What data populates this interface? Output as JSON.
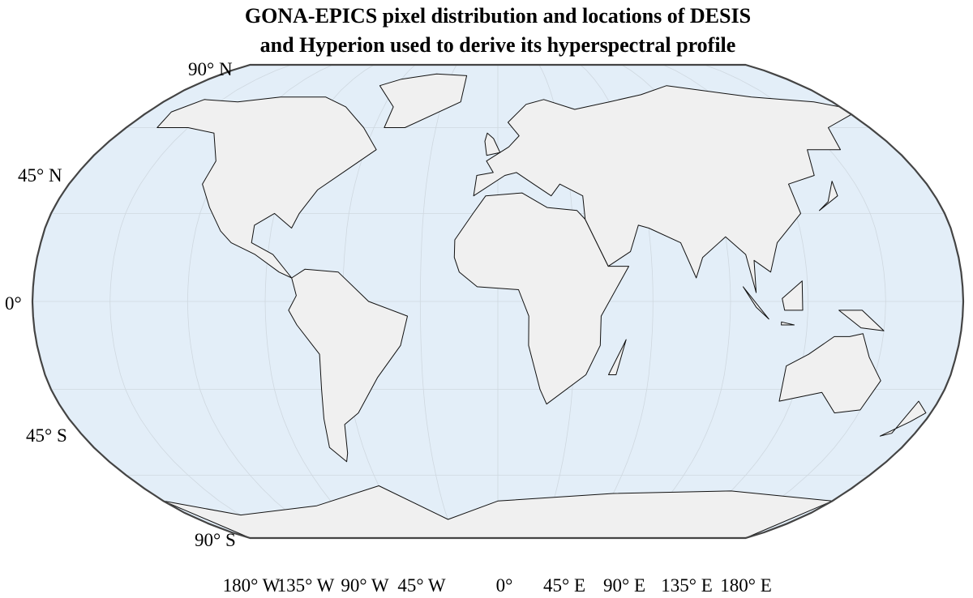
{
  "title": [
    "GONA-EPICS pixel distribution and locations of DESIS",
    "and Hyperion used to derive its hyperspectral profile"
  ],
  "latitude_labels": [
    "90° N",
    "45° N",
    "0°",
    "45° S",
    "90° S"
  ],
  "longitude_labels": [
    "180° W",
    "135° W",
    "90° W",
    "45° W",
    "0°",
    "45° E",
    "90° E",
    "135° E",
    "180° E"
  ]
}
